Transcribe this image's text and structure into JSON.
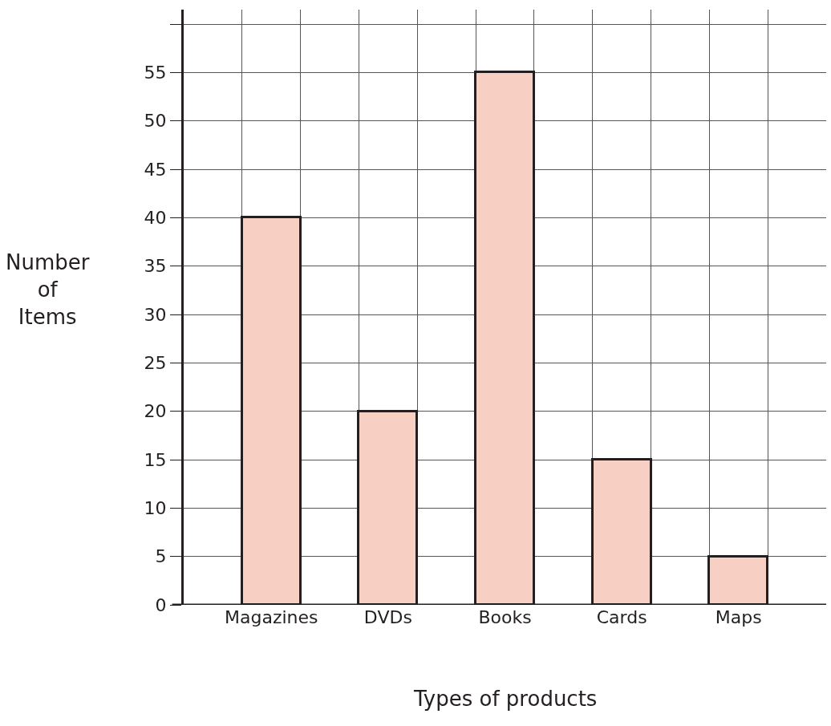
{
  "chart_data": {
    "type": "bar",
    "xlabel": "Types of products",
    "ylabel": "Number\nof\nItems",
    "categories": [
      "Magazines",
      "DVDs",
      "Books",
      "Cards",
      "Maps"
    ],
    "values": [
      40,
      20,
      55,
      15,
      5
    ],
    "color": "#f8cfc3",
    "ylim": [
      0,
      61.5
    ],
    "yticks": [
      0,
      5,
      10,
      15,
      20,
      25,
      30,
      35,
      40,
      45,
      50,
      55,
      {
        "value": 60,
        "label": null
      }
    ],
    "grid": true,
    "legend": false
  }
}
